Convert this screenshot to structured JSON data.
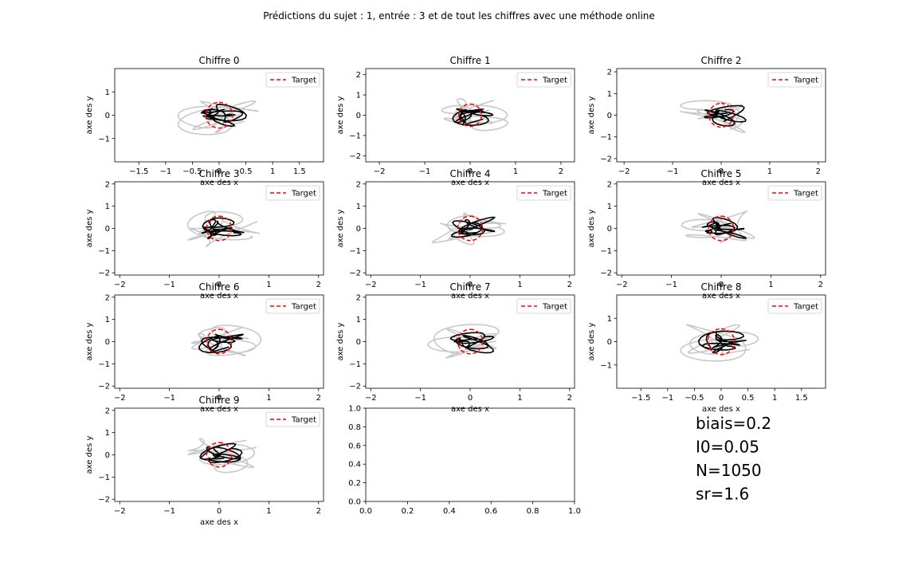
{
  "figure": {
    "title": "Prédictions du sujet : 1, entrée : 3 et de tout les chiffres avec une méthode online",
    "colors": {
      "target": "#ff0000",
      "prediction": "#000000",
      "data": "#c8c8c8",
      "frame": "#000000"
    }
  },
  "chart_data": [
    {
      "type": "line",
      "title": "Chiffre 0",
      "xlabel": "axe des x",
      "ylabel": "axe des y",
      "xlim": [
        -1.95,
        1.95
      ],
      "ylim": [
        -2.0,
        2.0
      ],
      "xticks": [
        -1.5,
        -1.0,
        -0.5,
        0.0,
        0.5,
        1.0,
        1.5
      ],
      "yticks": [
        -1,
        0,
        1
      ],
      "series": [
        {
          "name": "Target"
        }
      ],
      "legend": "top-right"
    },
    {
      "type": "line",
      "title": "Chiffre 1",
      "xlabel": "axe des x",
      "ylabel": "axe des y",
      "xlim": [
        -2.3,
        2.3
      ],
      "ylim": [
        -2.3,
        2.3
      ],
      "xticks": [
        -2,
        -1,
        0,
        1,
        2
      ],
      "yticks": [
        -2,
        -1,
        0,
        1,
        2
      ],
      "series": [
        {
          "name": "Target"
        }
      ],
      "legend": "top-right"
    },
    {
      "type": "line",
      "title": "Chiffre 2",
      "xlabel": "axe des x",
      "ylabel": "axe des y",
      "xlim": [
        -2.15,
        2.15
      ],
      "ylim": [
        -2.15,
        2.15
      ],
      "xticks": [
        -2,
        -1,
        0,
        1,
        2
      ],
      "yticks": [
        -2,
        -1,
        0,
        1,
        2
      ],
      "series": [
        {
          "name": "Target"
        }
      ],
      "legend": "top-right"
    },
    {
      "type": "line",
      "title": "Chiffre 3",
      "xlabel": "axe des x",
      "ylabel": "axe des y",
      "xlim": [
        -2.1,
        2.1
      ],
      "ylim": [
        -2.1,
        2.1
      ],
      "xticks": [
        -2,
        -1,
        0,
        1,
        2
      ],
      "yticks": [
        -2,
        -1,
        0,
        1,
        2
      ],
      "series": [
        {
          "name": "Target"
        }
      ],
      "legend": "top-right"
    },
    {
      "type": "line",
      "title": "Chiffre 4",
      "xlabel": "axe des x",
      "ylabel": "axe des y",
      "xlim": [
        -2.1,
        2.1
      ],
      "ylim": [
        -2.1,
        2.1
      ],
      "xticks": [
        -2,
        -1,
        0,
        1,
        2
      ],
      "yticks": [
        -2,
        -1,
        0,
        1,
        2
      ],
      "series": [
        {
          "name": "Target"
        }
      ],
      "legend": "top-right"
    },
    {
      "type": "line",
      "title": "Chiffre 5",
      "xlabel": "axe des x",
      "ylabel": "axe des y",
      "xlim": [
        -2.1,
        2.1
      ],
      "ylim": [
        -2.1,
        2.1
      ],
      "xticks": [
        -2,
        -1,
        0,
        1,
        2
      ],
      "yticks": [
        -2,
        -1,
        0,
        1,
        2
      ],
      "series": [
        {
          "name": "Target"
        }
      ],
      "legend": "top-right"
    },
    {
      "type": "line",
      "title": "Chiffre 6",
      "xlabel": "axe des x",
      "ylabel": "axe des y",
      "xlim": [
        -2.1,
        2.1
      ],
      "ylim": [
        -2.1,
        2.1
      ],
      "xticks": [
        -2,
        -1,
        0,
        1,
        2
      ],
      "yticks": [
        -2,
        -1,
        0,
        1,
        2
      ],
      "series": [
        {
          "name": "Target"
        }
      ],
      "legend": "top-right"
    },
    {
      "type": "line",
      "title": "Chiffre 7",
      "xlabel": "axe des x",
      "ylabel": "axe des y",
      "xlim": [
        -2.1,
        2.1
      ],
      "ylim": [
        -2.1,
        2.1
      ],
      "xticks": [
        -2,
        -1,
        0,
        1,
        2
      ],
      "yticks": [
        -2,
        -1,
        0,
        1,
        2
      ],
      "series": [
        {
          "name": "Target"
        }
      ],
      "legend": "top-right"
    },
    {
      "type": "line",
      "title": "Chiffre 8",
      "xlabel": "axe des x",
      "ylabel": "axe des y",
      "xlim": [
        -1.95,
        1.95
      ],
      "ylim": [
        -2.0,
        2.0
      ],
      "xticks": [
        -1.5,
        -1.0,
        -0.5,
        0.0,
        0.5,
        1.0,
        1.5
      ],
      "yticks": [
        -1,
        0,
        1
      ],
      "series": [
        {
          "name": "Target"
        }
      ],
      "legend": "top-right"
    },
    {
      "type": "line",
      "title": "Chiffre 9",
      "xlabel": "axe des x",
      "ylabel": "axe des y",
      "xlim": [
        -2.1,
        2.1
      ],
      "ylim": [
        -2.1,
        2.1
      ],
      "xticks": [
        -2,
        -1,
        0,
        1,
        2
      ],
      "yticks": [
        -2,
        -1,
        0,
        1,
        2
      ],
      "series": [
        {
          "name": "Target"
        }
      ],
      "legend": "top-right"
    },
    {
      "type": "line",
      "title": "",
      "xlabel": "",
      "ylabel": "",
      "xlim": [
        0.0,
        1.0
      ],
      "ylim": [
        0.0,
        1.0
      ],
      "xticks": [
        0.0,
        0.2,
        0.4,
        0.6,
        0.8,
        1.0
      ],
      "yticks": [
        0.0,
        0.2,
        0.4,
        0.6,
        0.8,
        1.0
      ],
      "tick_format": 1,
      "series": []
    }
  ],
  "parameters": [
    "biais=0.2",
    "I0=0.05",
    "N=1050",
    "sr=1.6"
  ]
}
